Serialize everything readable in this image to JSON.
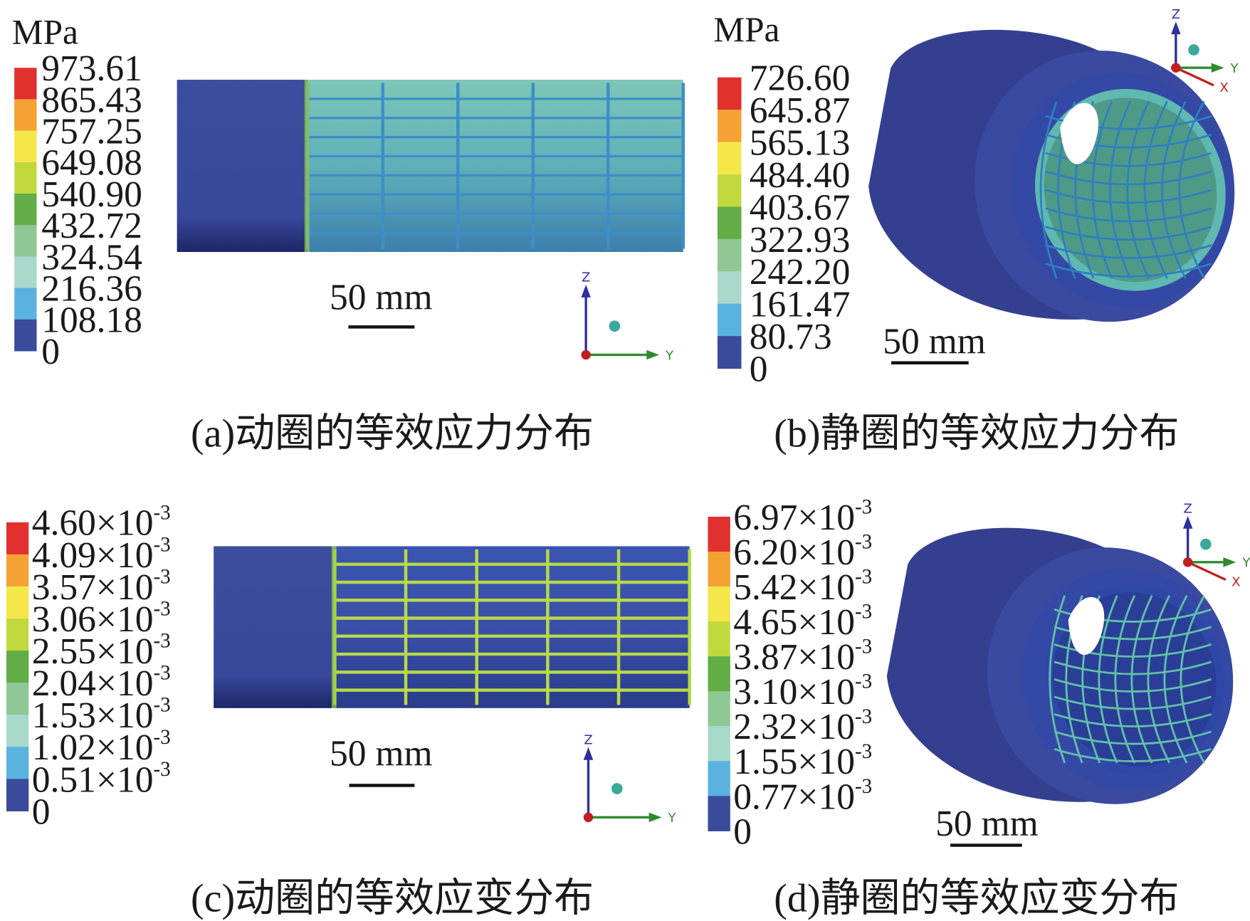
{
  "panels": [
    {
      "unit": "MPa",
      "legend": [
        "973.61",
        "865.43",
        "757.25",
        "649.08",
        "540.90",
        "432.72",
        "324.54",
        "216.36",
        "108.18",
        "0"
      ],
      "scale_bar": "50 mm",
      "axes": [
        "Z",
        "Y"
      ],
      "caption": "(a)动圈的等效应力分布"
    },
    {
      "unit": "MPa",
      "legend": [
        "726.60",
        "645.87",
        "565.13",
        "484.40",
        "403.67",
        "322.93",
        "242.20",
        "161.47",
        "80.73",
        "0"
      ],
      "scale_bar": "50 mm",
      "axes": [
        "Z",
        "Y",
        "X"
      ],
      "caption": "(b)静圈的等效应力分布"
    },
    {
      "legend": [
        {
          "mantissa": "4.60×10",
          "exponent": "-3"
        },
        {
          "mantissa": "4.09×10",
          "exponent": "-3"
        },
        {
          "mantissa": "3.57×10",
          "exponent": "-3"
        },
        {
          "mantissa": "3.06×10",
          "exponent": "-3"
        },
        {
          "mantissa": "2.55×10",
          "exponent": "-3"
        },
        {
          "mantissa": "2.04×10",
          "exponent": "-3"
        },
        {
          "mantissa": "1.53×10",
          "exponent": "-3"
        },
        {
          "mantissa": "1.02×10",
          "exponent": "-3"
        },
        {
          "mantissa": "0.51×10",
          "exponent": "-3"
        },
        "0"
      ],
      "scale_bar": "50 mm",
      "axes": [
        "Z",
        "Y"
      ],
      "caption": "(c)动圈的等效应变分布"
    },
    {
      "legend": [
        {
          "mantissa": "6.97×10",
          "exponent": "-3"
        },
        {
          "mantissa": "6.20×10",
          "exponent": "-3"
        },
        {
          "mantissa": "5.42×10",
          "exponent": "-3"
        },
        {
          "mantissa": "4.65×10",
          "exponent": "-3"
        },
        {
          "mantissa": "3.87×10",
          "exponent": "-3"
        },
        {
          "mantissa": "3.10×10",
          "exponent": "-3"
        },
        {
          "mantissa": "2.32×10",
          "exponent": "-3"
        },
        {
          "mantissa": "1.55×10",
          "exponent": "-3"
        },
        {
          "mantissa": "0.77×10",
          "exponent": "-3"
        },
        "0"
      ],
      "scale_bar": "50 mm",
      "axes": [
        "Z",
        "Y",
        "X"
      ],
      "caption": "(d)静圈的等效应变分布"
    }
  ]
}
